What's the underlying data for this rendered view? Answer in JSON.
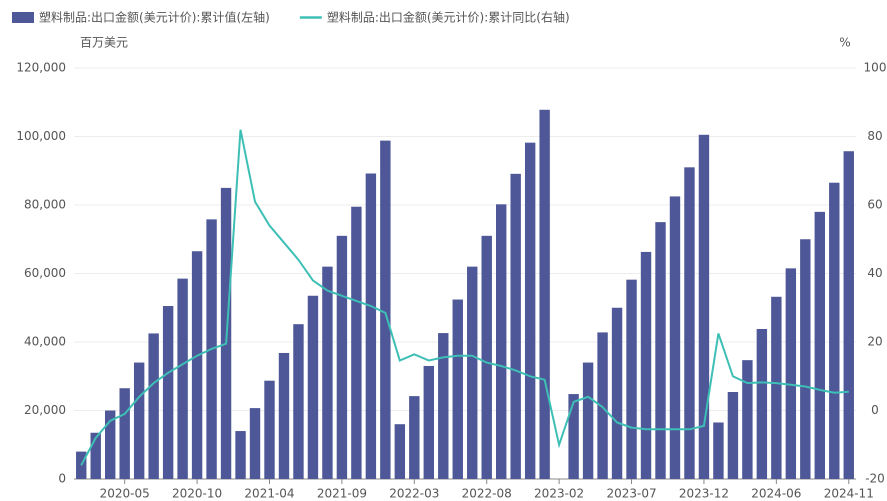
{
  "chart_data": {
    "type": "bar-line",
    "legend_position": "top-left",
    "y_label": "百万美元",
    "y2_label": "%",
    "categories": [
      null,
      null,
      null,
      "2020-05",
      null,
      null,
      null,
      null,
      "2020-10",
      null,
      null,
      null,
      null,
      "2021-04",
      null,
      null,
      null,
      null,
      "2021-09",
      null,
      null,
      null,
      null,
      "2022-03",
      null,
      null,
      null,
      null,
      "2022-08",
      null,
      null,
      null,
      null,
      "2023-02",
      null,
      null,
      null,
      null,
      "2023-07",
      null,
      null,
      null,
      null,
      "2023-12",
      null,
      null,
      null,
      null,
      "2024-06",
      null,
      null,
      null,
      null,
      "2024-11"
    ],
    "series": [
      {
        "name": "塑料制品:出口金额(美元计价):累计值(左轴)",
        "type": "bar",
        "color": "#4e5797",
        "values": [
          8000,
          13500,
          20000,
          26500,
          34000,
          42500,
          50500,
          58500,
          66500,
          75800,
          85000,
          14000,
          20700,
          28700,
          36800,
          45200,
          53500,
          62000,
          71000,
          79500,
          89200,
          98800,
          16000,
          24200,
          33000,
          42600,
          52400,
          62000,
          71000,
          80200,
          89100,
          98200,
          107800,
          null,
          24800,
          34000,
          42800,
          50000,
          58200,
          66300,
          75000,
          82500,
          91000,
          100500,
          16500,
          25400,
          34700,
          43800,
          53200,
          61500,
          70000,
          78000,
          86500,
          95700
        ]
      },
      {
        "name": "塑料制品:出口金额(美元计价):累计同比(右轴)",
        "type": "line",
        "color": "#3dbfb5",
        "axis": "y2",
        "values": [
          -16,
          -8,
          -3,
          -1,
          4,
          8,
          11,
          13.5,
          16,
          18,
          19.5,
          82,
          61,
          54,
          49,
          44,
          38,
          35,
          33.5,
          32,
          30.5,
          28.5,
          14.6,
          16.4,
          14.6,
          15.5,
          16,
          16,
          14,
          13,
          11.7,
          10,
          9,
          -10,
          2.5,
          4,
          1,
          -3.5,
          -5,
          -5.5,
          -5.5,
          -5.5,
          -5.5,
          -4.5,
          22.5,
          10,
          8,
          8.2,
          8,
          7.5,
          7,
          6,
          5.2,
          5.5
        ]
      }
    ],
    "ylim": [
      0,
      120000
    ],
    "yticks": [
      0,
      {
        "value": 20000,
        "label": "20,000"
      },
      {
        "value": 40000,
        "label": "40,000"
      },
      {
        "value": 60000,
        "label": "60,000"
      },
      {
        "value": 80000,
        "label": "80,000"
      },
      {
        "value": 100000,
        "label": "100,000"
      },
      {
        "value": 120000,
        "label": "120,000"
      }
    ],
    "y2lim": [
      -20,
      100
    ],
    "y2ticks": [
      -20,
      0,
      20,
      40,
      60,
      80,
      100
    ],
    "grid": true
  }
}
